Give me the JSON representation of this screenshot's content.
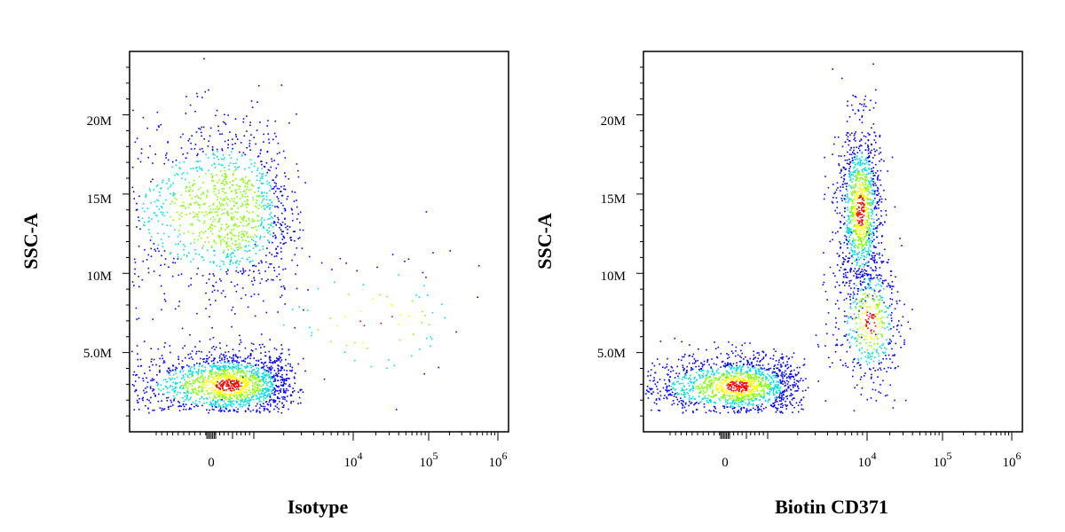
{
  "chart_data": [
    {
      "type": "scatter",
      "style": "flow-cytometry density dot plot",
      "xlabel": "Isotype",
      "ylabel": "SSC-A",
      "x_scale": "biexponential",
      "x_ticks": [
        "0",
        "10^4",
        "10^5",
        "10^6"
      ],
      "y_ticks": [
        "5.0M",
        "10M",
        "15M",
        "20M"
      ],
      "ylim": [
        0,
        24000000
      ],
      "grid": false,
      "populations": [
        {
          "name": "",
          "x_center": 400,
          "y_center": 3000000,
          "x_spread_decades": 0.5,
          "y_spread": 1100000,
          "share": 0.55
        },
        {
          "name": "",
          "x_center": 300,
          "y_center": 14000000,
          "x_spread_decades": 0.55,
          "y_spread": 2900000,
          "share": 0.42
        },
        {
          "name": "",
          "x_center": 20000,
          "y_center": 7000000,
          "x_spread_decades": 0.8,
          "y_spread": 2500000,
          "share": 0.03
        }
      ]
    },
    {
      "type": "scatter",
      "style": "flow-cytometry density dot plot",
      "xlabel": "Biotin CD371",
      "ylabel": "SSC-A",
      "x_scale": "biexponential",
      "x_ticks": [
        "0",
        "10^4",
        "10^5",
        "10^6"
      ],
      "y_ticks": [
        "5.0M",
        "10M",
        "15M",
        "20M"
      ],
      "ylim": [
        0,
        24000000
      ],
      "grid": false,
      "populations": [
        {
          "name": "",
          "x_center": 300,
          "y_center": 2900000,
          "x_spread_decades": 0.45,
          "y_spread": 1000000,
          "share": 0.5
        },
        {
          "name": "",
          "x_center": 8500,
          "y_center": 14000000,
          "x_spread_decades": 0.12,
          "y_spread": 2800000,
          "share": 0.35
        },
        {
          "name": "",
          "x_center": 11000,
          "y_center": 7000000,
          "x_spread_decades": 0.2,
          "y_spread": 2200000,
          "share": 0.15
        }
      ]
    }
  ],
  "colors": {
    "density_low": "#0000ff",
    "density_mid": "#00e0e0",
    "density_mid_high": "#80ff00",
    "density_high": "#ffff00",
    "density_peak": "#ff0000",
    "axis": "#000000"
  }
}
